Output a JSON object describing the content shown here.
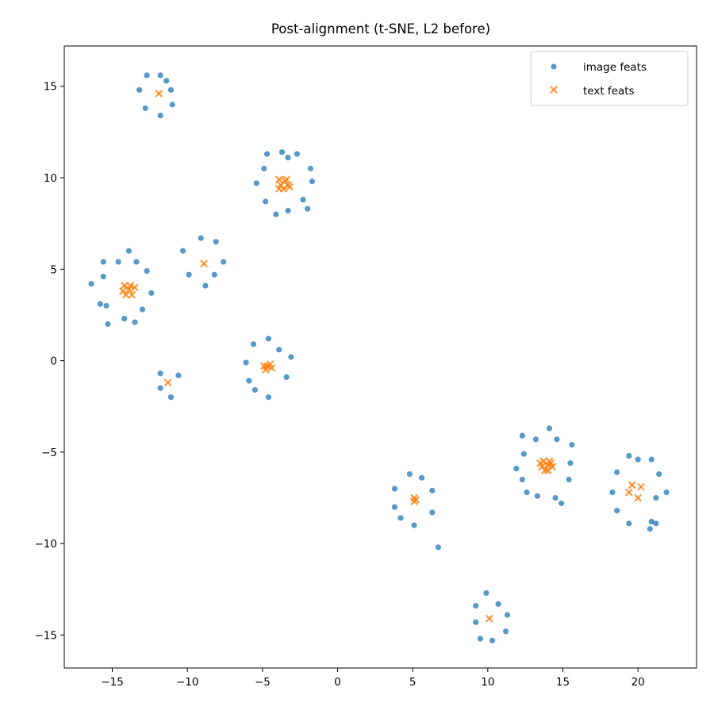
{
  "chart_data": {
    "type": "scatter",
    "title": "Post-alignment (t-SNE, L2 before)",
    "xlabel": "",
    "ylabel": "",
    "xlim": [
      -18.2,
      23.9
    ],
    "ylim": [
      -16.8,
      17.2
    ],
    "xticks": [
      -15,
      -10,
      -5,
      0,
      5,
      10,
      15,
      20
    ],
    "yticks": [
      -15,
      -10,
      -5,
      0,
      5,
      10,
      15
    ],
    "grid": false,
    "legend_position": "top-right",
    "series": [
      {
        "name": "image feats",
        "marker": "circle",
        "color": "#1f77b4",
        "points": [
          [
            -12.7,
            15.6
          ],
          [
            -11.8,
            15.6
          ],
          [
            -11.4,
            15.3
          ],
          [
            -13.2,
            14.8
          ],
          [
            -11.1,
            14.8
          ],
          [
            -12.8,
            13.8
          ],
          [
            -11.0,
            14.0
          ],
          [
            -11.8,
            13.4
          ],
          [
            -4.7,
            11.3
          ],
          [
            -3.7,
            11.4
          ],
          [
            -2.7,
            11.3
          ],
          [
            -3.3,
            11.1
          ],
          [
            -4.9,
            10.5
          ],
          [
            -1.8,
            10.5
          ],
          [
            -5.4,
            9.7
          ],
          [
            -1.7,
            9.8
          ],
          [
            -2.3,
            8.8
          ],
          [
            -4.8,
            8.7
          ],
          [
            -2.0,
            8.3
          ],
          [
            -3.3,
            8.2
          ],
          [
            -4.1,
            8.0
          ],
          [
            -13.9,
            6.0
          ],
          [
            -15.6,
            5.4
          ],
          [
            -14.6,
            5.4
          ],
          [
            -13.4,
            5.4
          ],
          [
            -12.7,
            4.9
          ],
          [
            -15.6,
            4.6
          ],
          [
            -16.4,
            4.2
          ],
          [
            -12.4,
            3.7
          ],
          [
            -15.8,
            3.1
          ],
          [
            -15.4,
            3.0
          ],
          [
            -13.0,
            2.8
          ],
          [
            -14.2,
            2.3
          ],
          [
            -13.5,
            2.1
          ],
          [
            -15.3,
            2.0
          ],
          [
            -9.1,
            6.7
          ],
          [
            -8.1,
            6.5
          ],
          [
            -10.3,
            6.0
          ],
          [
            -7.6,
            5.4
          ],
          [
            -9.9,
            4.7
          ],
          [
            -8.2,
            4.7
          ],
          [
            -8.8,
            4.1
          ],
          [
            -4.6,
            1.2
          ],
          [
            -5.6,
            0.9
          ],
          [
            -3.9,
            0.6
          ],
          [
            -3.1,
            0.2
          ],
          [
            -6.1,
            -0.1
          ],
          [
            -3.4,
            -0.9
          ],
          [
            -5.9,
            -1.1
          ],
          [
            -5.5,
            -1.6
          ],
          [
            -4.6,
            -2.0
          ],
          [
            -11.8,
            -0.7
          ],
          [
            -10.6,
            -0.8
          ],
          [
            -11.8,
            -1.5
          ],
          [
            -11.1,
            -2.0
          ],
          [
            4.8,
            -6.2
          ],
          [
            5.6,
            -6.4
          ],
          [
            3.8,
            -7.0
          ],
          [
            6.3,
            -7.1
          ],
          [
            3.8,
            -8.0
          ],
          [
            6.3,
            -8.3
          ],
          [
            4.2,
            -8.6
          ],
          [
            5.1,
            -9.0
          ],
          [
            6.7,
            -10.2
          ],
          [
            14.1,
            -3.7
          ],
          [
            12.3,
            -4.1
          ],
          [
            13.2,
            -4.3
          ],
          [
            14.6,
            -4.3
          ],
          [
            15.6,
            -4.6
          ],
          [
            12.4,
            -5.1
          ],
          [
            15.5,
            -5.6
          ],
          [
            11.9,
            -5.9
          ],
          [
            12.3,
            -6.5
          ],
          [
            15.4,
            -6.5
          ],
          [
            12.6,
            -7.2
          ],
          [
            13.3,
            -7.4
          ],
          [
            14.5,
            -7.5
          ],
          [
            14.9,
            -7.8
          ],
          [
            19.4,
            -5.2
          ],
          [
            20.0,
            -5.4
          ],
          [
            20.9,
            -5.4
          ],
          [
            18.6,
            -6.1
          ],
          [
            21.4,
            -6.2
          ],
          [
            18.3,
            -7.2
          ],
          [
            21.9,
            -7.2
          ],
          [
            21.2,
            -7.5
          ],
          [
            18.6,
            -8.2
          ],
          [
            20.9,
            -8.8
          ],
          [
            19.4,
            -8.9
          ],
          [
            21.2,
            -8.9
          ],
          [
            20.8,
            -9.2
          ],
          [
            9.9,
            -12.7
          ],
          [
            10.7,
            -13.3
          ],
          [
            9.2,
            -13.4
          ],
          [
            11.3,
            -13.9
          ],
          [
            9.2,
            -14.3
          ],
          [
            11.2,
            -14.8
          ],
          [
            9.5,
            -15.2
          ],
          [
            10.3,
            -15.3
          ]
        ]
      },
      {
        "name": "text feats",
        "marker": "x",
        "color": "#ff7f0e",
        "points": [
          [
            -11.9,
            14.6
          ],
          [
            -3.9,
            9.9
          ],
          [
            -3.4,
            9.9
          ],
          [
            -3.8,
            9.6
          ],
          [
            -3.3,
            9.6
          ],
          [
            -3.6,
            9.4
          ],
          [
            -3.9,
            9.4
          ],
          [
            -3.2,
            9.5
          ],
          [
            -3.5,
            9.8
          ],
          [
            -14.2,
            4.1
          ],
          [
            -13.8,
            4.1
          ],
          [
            -14.3,
            3.8
          ],
          [
            -13.5,
            4.0
          ],
          [
            -14.1,
            3.6
          ],
          [
            -13.7,
            3.6
          ],
          [
            -13.9,
            3.9
          ],
          [
            -8.9,
            5.3
          ],
          [
            -4.9,
            -0.3
          ],
          [
            -4.5,
            -0.2
          ],
          [
            -4.8,
            -0.5
          ],
          [
            -4.4,
            -0.4
          ],
          [
            -4.7,
            -0.3
          ],
          [
            -11.3,
            -1.2
          ],
          [
            5.1,
            -7.5
          ],
          [
            5.1,
            -7.7
          ],
          [
            5.2,
            -7.6
          ],
          [
            13.7,
            -5.5
          ],
          [
            14.2,
            -5.6
          ],
          [
            13.6,
            -5.8
          ],
          [
            14.0,
            -5.7
          ],
          [
            13.8,
            -6.0
          ],
          [
            14.3,
            -5.8
          ],
          [
            14.0,
            -6.0
          ],
          [
            13.5,
            -5.6
          ],
          [
            14.1,
            -5.5
          ],
          [
            19.6,
            -6.8
          ],
          [
            20.2,
            -6.9
          ],
          [
            19.4,
            -7.2
          ],
          [
            20.0,
            -7.5
          ],
          [
            10.1,
            -14.1
          ]
        ]
      }
    ]
  }
}
